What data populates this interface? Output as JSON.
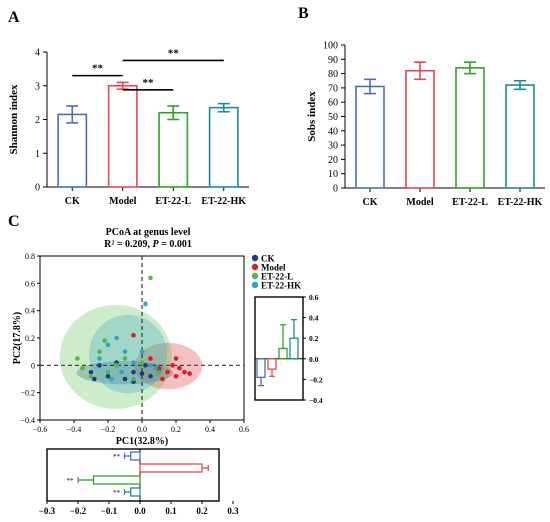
{
  "colors": {
    "ck": "#4a6fb5",
    "model": "#e8474f",
    "et_l": "#33a02c",
    "et_hk": "#1f8aa0",
    "ck_dot": "#1a3a8f",
    "model_dot": "#e01b24",
    "et_l_dot": "#4cbb3e",
    "et_hk_dot": "#2fa3c8"
  },
  "chart_data": [
    {
      "panel": "A",
      "type": "bar",
      "ylabel": "Shannon index",
      "categories": [
        "CK",
        "Model",
        "ET-22-L",
        "ET-22-HK"
      ],
      "values": [
        2.15,
        3.0,
        2.2,
        2.35
      ],
      "errors": [
        0.25,
        0.1,
        0.2,
        0.12
      ],
      "ylim": [
        0,
        4
      ],
      "yticks": [
        "0",
        "1",
        "2",
        "3",
        "4"
      ],
      "significance": [
        {
          "from": 0,
          "to": 1,
          "label": "**",
          "y": 3.3
        },
        {
          "from": 1,
          "to": 2,
          "label": "**",
          "y": 2.88
        },
        {
          "from": 1,
          "to": 3,
          "label": "**",
          "y": 3.75
        }
      ]
    },
    {
      "panel": "B",
      "type": "bar",
      "ylabel": "Sobs index",
      "categories": [
        "CK",
        "Model",
        "ET-22-L",
        "ET-22-HK"
      ],
      "values": [
        71,
        82,
        84,
        72
      ],
      "errors": [
        5,
        6,
        4,
        3
      ],
      "ylim": [
        0,
        100
      ],
      "yticks": [
        "0",
        "10",
        "20",
        "30",
        "40",
        "50",
        "60",
        "70",
        "80",
        "90",
        "100"
      ]
    },
    {
      "panel": "C",
      "type": "scatter",
      "title": "PCoA at  genus level",
      "stat_r": "R² = 0.209, ",
      "stat_p_letter": "P",
      "stat_p_value": " = 0.001",
      "xlabel": "PC1(32.8%)",
      "ylabel": "PC2(17.8%)",
      "xlim": [
        -0.6,
        0.6
      ],
      "ylim": [
        -0.4,
        0.8
      ],
      "xticks": [
        "−0.6",
        "−0.4",
        "−0.2",
        "0.0",
        "0.2",
        "0.4",
        "0.6"
      ],
      "yticks": [
        "−0.4",
        "−0.2",
        "0",
        "0.2",
        "0.4",
        "0.6",
        "0.8"
      ],
      "legend_position": "top-right",
      "series": [
        {
          "name": "CK",
          "color_key": "ck_dot",
          "points": [
            [
              -0.3,
              -0.05
            ],
            [
              -0.25,
              0.0
            ],
            [
              -0.2,
              -0.08
            ],
            [
              -0.1,
              -0.1
            ],
            [
              -0.05,
              -0.12
            ],
            [
              0.0,
              -0.06
            ],
            [
              0.02,
              0.0
            ],
            [
              -0.15,
              0.02
            ],
            [
              0.05,
              -0.08
            ],
            [
              0.1,
              -0.03
            ],
            [
              -0.28,
              -0.1
            ],
            [
              -0.05,
              -0.05
            ]
          ]
        },
        {
          "name": "Model",
          "color_key": "model_dot",
          "points": [
            [
              0.1,
              -0.02
            ],
            [
              0.15,
              -0.05
            ],
            [
              0.2,
              -0.08
            ],
            [
              0.22,
              -0.02
            ],
            [
              0.25,
              -0.05
            ],
            [
              0.18,
              0.0
            ],
            [
              0.12,
              -0.1
            ],
            [
              0.28,
              -0.06
            ],
            [
              0.2,
              0.05
            ],
            [
              -0.05,
              0.22
            ],
            [
              0.05,
              0.05
            ]
          ]
        },
        {
          "name": "ET-22-L",
          "color_key": "et_l_dot",
          "points": [
            [
              -0.38,
              0.05
            ],
            [
              -0.35,
              -0.02
            ],
            [
              -0.3,
              -0.08
            ],
            [
              -0.25,
              0.1
            ],
            [
              -0.2,
              -0.05
            ],
            [
              -0.15,
              0.0
            ],
            [
              -0.1,
              0.05
            ],
            [
              0.05,
              0.64
            ],
            [
              0.1,
              -0.05
            ],
            [
              -0.05,
              -0.1
            ],
            [
              0.0,
              0.02
            ],
            [
              -0.22,
              0.18
            ]
          ]
        },
        {
          "name": "ET-22-HK",
          "color_key": "et_hk_dot",
          "points": [
            [
              -0.25,
              0.05
            ],
            [
              -0.2,
              0.15
            ],
            [
              -0.15,
              0.2
            ],
            [
              -0.1,
              0.1
            ],
            [
              0.02,
              0.45
            ],
            [
              -0.05,
              0.02
            ],
            [
              0.05,
              0.0
            ],
            [
              -0.12,
              -0.05
            ],
            [
              0.08,
              -0.02
            ],
            [
              -0.18,
              -0.1
            ],
            [
              0.0,
              0.1
            ]
          ]
        }
      ],
      "right_box": {
        "ylim": [
          -0.4,
          0.6
        ],
        "yticks": [
          "0.6",
          "0.4",
          "0.2",
          "0.0",
          "−0.2",
          "−0.4"
        ],
        "values": [
          -0.18,
          -0.1,
          0.1,
          0.2
        ],
        "errors": [
          0.08,
          0.07,
          0.23,
          0.18
        ]
      },
      "bottom_box": {
        "xlim": [
          -0.3,
          0.3
        ],
        "xticks": [
          "−0.3",
          "−0.2",
          "−0.1",
          "0.0",
          "0.1",
          "0.2",
          "0.3"
        ],
        "values": [
          -0.03,
          0.2,
          -0.15,
          -0.03
        ],
        "errors": [
          0.02,
          0.02,
          0.05,
          0.02
        ],
        "sig_labels": [
          "**",
          "",
          "**",
          "**"
        ]
      }
    }
  ],
  "panel_labels": {
    "a": "A",
    "b": "B",
    "c": "C"
  }
}
